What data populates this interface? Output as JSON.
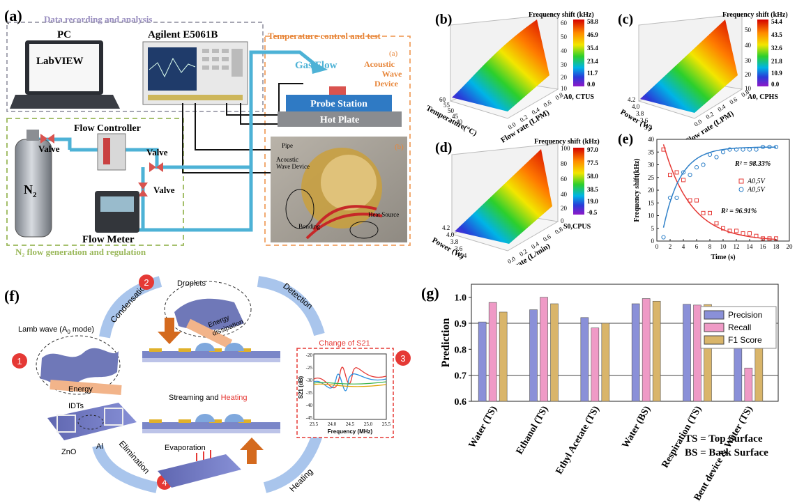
{
  "panel_a": {
    "label": "(a)",
    "data_box_title": "Data recording and analysis",
    "pc_label": "PC",
    "labview": "LabVIEW",
    "instrument": "Agilent E5061B",
    "temp_box_title": "Temperature control and test",
    "gas_flow": "Gas Flow",
    "sub_a": "(a)",
    "device_label": [
      "Acoustic",
      "Wave",
      "Device"
    ],
    "probe_station": "Probe Station",
    "hot_plate": "Hot Plate",
    "flow_controller": "Flow Controller",
    "valve": "Valve",
    "n2": "N",
    "n2_sub": "2",
    "flow_meter": "Flow Meter",
    "n2_box_title": "N₂ flow generation and regulation",
    "sub_b": "(b)",
    "photo_labels": {
      "pipe": "Pipe",
      "device1": "Acoustic",
      "device2": "Wave Device",
      "bonding": "Bonding",
      "heat": "Heat Source"
    }
  },
  "panel_b": {
    "label": "(b)",
    "cb_title": "Frequency shift (kHz)",
    "cb_ticks": [
      "58.8",
      "46.9",
      "35.4",
      "23.4",
      "11.7",
      "0.0"
    ],
    "caption": "A0, CTUS",
    "zticks": [
      "60",
      "50",
      "40",
      "30",
      "20",
      "10"
    ],
    "xlabel": "Temperature(°C)",
    "xticks": [
      "60",
      "55",
      "50",
      "45",
      "40"
    ],
    "ylabel": "Flow rate (LPM)",
    "yticks": [
      "0.0",
      "0.2",
      "0.4",
      "0.6",
      "0.8"
    ]
  },
  "panel_c": {
    "label": "(c)",
    "cb_title": "Frequency shift (kHz)",
    "cb_ticks": [
      "54.4",
      "43.5",
      "32.6",
      "21.8",
      "10.9",
      "0.0"
    ],
    "caption": "A0, CPHS",
    "zticks": [
      "50",
      "40",
      "30",
      "20",
      "10"
    ],
    "xlabel": "Power (W)",
    "xticks": [
      "4.2",
      "4.0",
      "3.8",
      "3.6",
      "3.4"
    ],
    "ylabel": "Flow rate (LPM)",
    "yticks": [
      "0.0",
      "0.2",
      "0.4",
      "0.6",
      "0.8"
    ]
  },
  "panel_d": {
    "label": "(d)",
    "cb_title": "Frequency shift (kHz)",
    "cb_ticks": [
      "97.0",
      "77.5",
      "58.0",
      "38.5",
      "19.0",
      "-0.5"
    ],
    "caption": "S0,CPUS",
    "zticks": [
      "100",
      "80",
      "60",
      "40",
      "20",
      "0"
    ],
    "xlabel": "Power (W)",
    "xticks": [
      "4.2",
      "4.0",
      "3.8",
      "3.6",
      "3.4"
    ],
    "ylabel": "Flow rate (L/min)",
    "yticks": [
      "0.0",
      "0.2",
      "0.4",
      "0.6",
      "0.8"
    ]
  },
  "panel_e": {
    "label": "(e)",
    "chart_data": {
      "type": "scatter",
      "xlabel": "Time (s)",
      "ylabel": "Frequency shift(kHz)",
      "xlim": [
        0,
        20
      ],
      "ylim": [
        0,
        40
      ],
      "xticks": [
        "0",
        "2",
        "4",
        "6",
        "8",
        "10",
        "12",
        "14",
        "16",
        "18",
        "20"
      ],
      "yticks": [
        "0",
        "5",
        "10",
        "15",
        "20",
        "25",
        "30",
        "35",
        "40"
      ],
      "series": [
        {
          "name": "A0,5V",
          "color": "#e53935",
          "x": [
            1,
            2,
            3,
            4,
            5,
            6,
            7,
            8,
            9,
            10,
            11,
            12,
            13,
            14,
            15,
            16,
            17,
            18
          ],
          "y": [
            36,
            26,
            27,
            24,
            16,
            16,
            11,
            11,
            7,
            5,
            4,
            4,
            3,
            3,
            2,
            1,
            1,
            1
          ]
        },
        {
          "name": "A0,5V",
          "color": "#2f80c8",
          "x": [
            1,
            2,
            3,
            4,
            5,
            6,
            7,
            8,
            9,
            10,
            11,
            12,
            13,
            14,
            15,
            16,
            17,
            18
          ],
          "y": [
            1.5,
            17,
            17,
            27,
            26,
            29,
            30,
            34,
            33,
            35,
            36,
            36,
            36,
            36,
            36,
            37,
            37,
            37
          ]
        }
      ],
      "annotations": [
        "R² = 98.33%",
        "R² = 96.91%"
      ]
    }
  },
  "panel_f": {
    "label": "(f)",
    "droplets": "Droplets",
    "condensation": "Condensation",
    "detection": "Detection",
    "energy_dissipation": [
      "Energy",
      "dissipation"
    ],
    "lamb": "Lamb wave (A",
    "lamb_sub": "0",
    "lamb_end": " mode)",
    "energy": "Energy",
    "idts": "IDTs",
    "zno": "ZnO",
    "al": "Al",
    "change": "Change of S21",
    "s21_ylabel": "S21 (dB)",
    "s21_xlabel": "Frequency (MHz)",
    "s21_xticks": [
      "23.5",
      "24.0",
      "24.5",
      "25.0",
      "25.5"
    ],
    "s21_yticks": [
      "-20",
      "-25",
      "-30",
      "-35",
      "-40",
      "-45"
    ],
    "streaming": "Streaming and ",
    "heating_word": "Heating",
    "evaporation": "Evaporation",
    "elimination": "Elimination",
    "heating": "Heating",
    "steps": [
      "1",
      "2",
      "3",
      "4"
    ]
  },
  "panel_g": {
    "label": "(g)",
    "chart_data": {
      "type": "bar",
      "ylabel": "Prediction",
      "ylim": [
        0.6,
        1.05
      ],
      "yticks": [
        "0.6",
        "0.7",
        "0.8",
        "0.9",
        "1.0"
      ],
      "categories": [
        "Water (TS)",
        "Ethanol (TS)",
        "Ethyl Acetate (TS)",
        "Water (BS)",
        "Respiration (TS)",
        "Bent device & Water (TS)"
      ],
      "series": [
        {
          "name": "Precision",
          "color": "#8a90d8",
          "values": [
            0.905,
            0.952,
            0.922,
            0.975,
            0.973,
            0.94
          ]
        },
        {
          "name": "Recall",
          "color": "#ef9ac6",
          "values": [
            0.98,
            1.0,
            0.882,
            0.995,
            0.97,
            0.728
          ]
        },
        {
          "name": "F1 Score",
          "color": "#d9b56a",
          "values": [
            0.943,
            0.975,
            0.9,
            0.985,
            0.972,
            0.822
          ]
        }
      ],
      "legend_position": "top-right",
      "gridlines": [
        0.7,
        0.9
      ]
    },
    "note1": "TS = Top Surface",
    "note2": "BS = Back Surface"
  }
}
